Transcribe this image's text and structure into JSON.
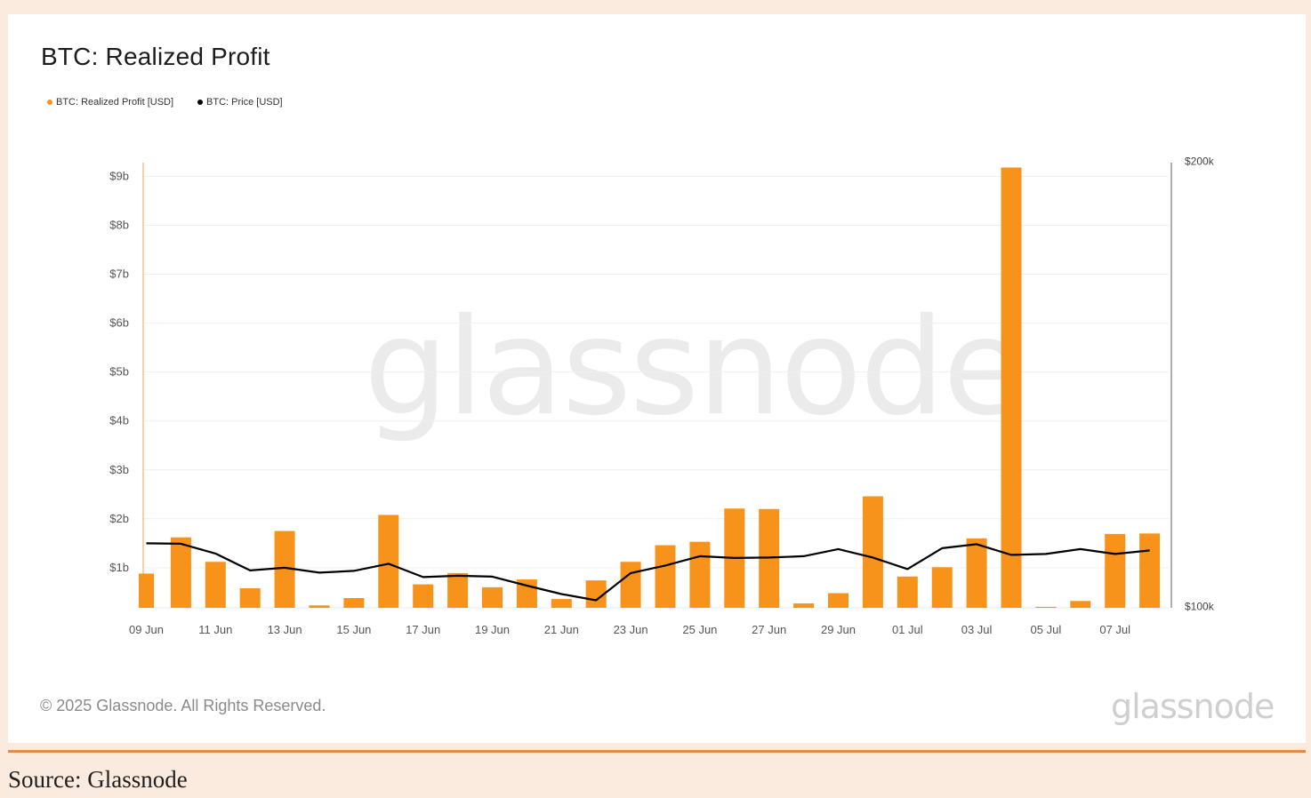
{
  "chart_data": {
    "type": "bar",
    "title": "BTC: Realized Profit",
    "legend": [
      {
        "name": "BTC: Realized Profit [USD]",
        "color": "#f7931a"
      },
      {
        "name": "BTC: Price [USD]",
        "color": "#000000"
      }
    ],
    "legend_position": "top-left",
    "grid": true,
    "watermark": "glassnode",
    "x_tick_labels": [
      "09 Jun",
      "11 Jun",
      "13 Jun",
      "15 Jun",
      "17 Jun",
      "19 Jun",
      "21 Jun",
      "23 Jun",
      "25 Jun",
      "27 Jun",
      "29 Jun",
      "01 Jul",
      "03 Jul",
      "05 Jul",
      "07 Jul"
    ],
    "categories": [
      "09 Jun",
      "10 Jun",
      "11 Jun",
      "12 Jun",
      "13 Jun",
      "14 Jun",
      "15 Jun",
      "16 Jun",
      "17 Jun",
      "18 Jun",
      "19 Jun",
      "20 Jun",
      "21 Jun",
      "22 Jun",
      "23 Jun",
      "24 Jun",
      "25 Jun",
      "26 Jun",
      "27 Jun",
      "28 Jun",
      "29 Jun",
      "30 Jun",
      "01 Jul",
      "02 Jul",
      "03 Jul",
      "04 Jul",
      "05 Jul",
      "06 Jul",
      "07 Jul",
      "08 Jul"
    ],
    "y_left": {
      "ticks": [
        "$1b",
        "$2b",
        "$3b",
        "$4b",
        "$5b",
        "$6b",
        "$7b",
        "$8b",
        "$9b"
      ],
      "tick_values": [
        1,
        2,
        3,
        4,
        5,
        6,
        7,
        8,
        9
      ],
      "range": [
        0.18,
        9.2
      ],
      "unit": "billion USD"
    },
    "y_right": {
      "ticks": [
        "$100k",
        "$200k"
      ],
      "tick_values": [
        100000,
        200000
      ],
      "range": [
        100000,
        200000
      ]
    },
    "series": [
      {
        "name": "BTC: Realized Profit [USD]",
        "axis": "left",
        "color": "#f7931a",
        "values": [
          0.88,
          1.62,
          1.12,
          0.58,
          1.75,
          0.23,
          0.38,
          2.08,
          0.66,
          0.89,
          0.6,
          0.76,
          0.36,
          0.74,
          1.12,
          1.46,
          1.53,
          2.21,
          2.2,
          0.27,
          0.48,
          2.46,
          0.82,
          1.01,
          1.6,
          9.18,
          0.2,
          0.32,
          1.69,
          1.7
        ]
      },
      {
        "name": "BTC: Price [USD]",
        "axis": "left-line-right-scale",
        "color": "#000000",
        "values": [
          114200,
          114100,
          111900,
          108100,
          108700,
          107600,
          108000,
          109600,
          106600,
          106900,
          106700,
          104700,
          102800,
          101400,
          107500,
          109200,
          111300,
          110900,
          111000,
          111300,
          112900,
          111000,
          108400,
          113100,
          114000,
          111600,
          111800,
          112900,
          111800,
          112600
        ]
      }
    ]
  },
  "footer": {
    "copyright": "© 2025 Glassnode. All Rights Reserved.",
    "logo_text": "glassnode",
    "source": "Source: Glassnode"
  },
  "colors": {
    "page_background": "#fbebdf",
    "divider": "#e48a4a",
    "bar": "#f7931a",
    "price_line": "#000000"
  }
}
